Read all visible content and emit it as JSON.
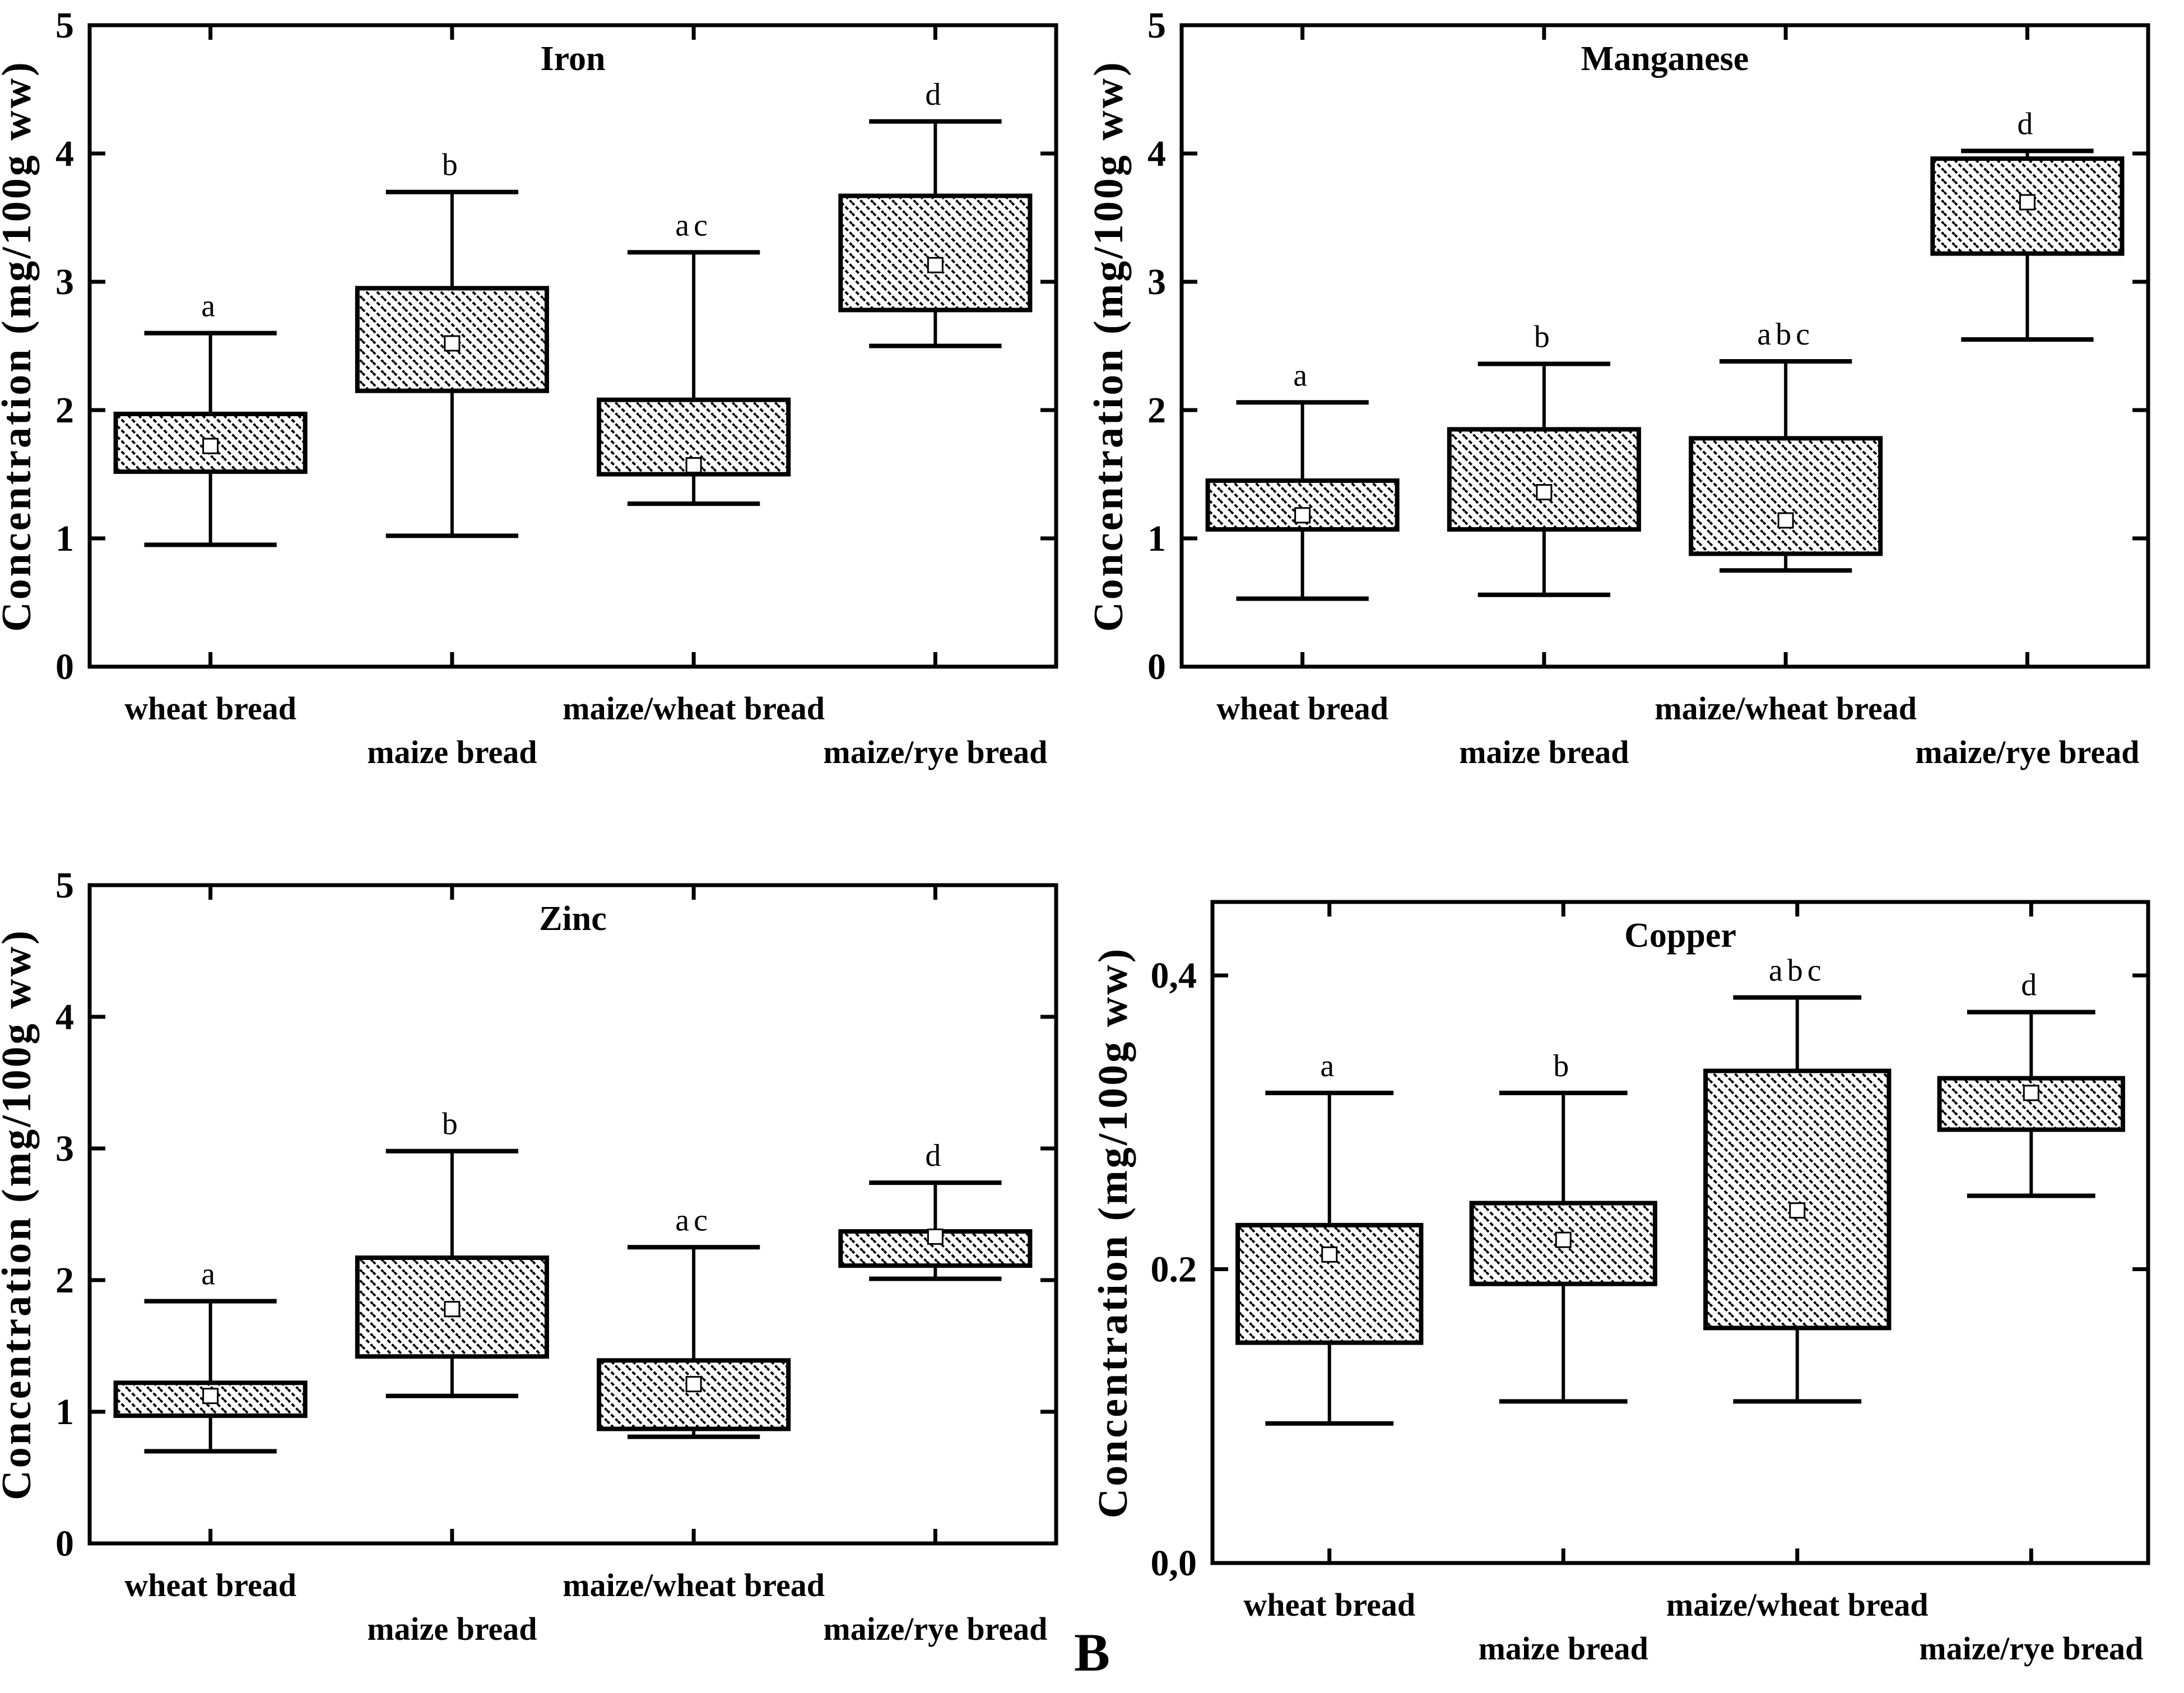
{
  "figure": {
    "caption_label": "B",
    "y_axis_label": "Concentration (mg/100g ww)",
    "categories": [
      "wheat bread",
      "maize bread",
      "maize/wheat bread",
      "maize/rye bread"
    ],
    "colors": {
      "ink": "#000000",
      "paper": "#ffffff",
      "marker_fill": "#ffffff"
    },
    "box_style": "diagonal-hatch"
  },
  "chart_data": [
    {
      "type": "box",
      "title": "Iron",
      "ylabel": "Concentration (mg/100g ww)",
      "ylim": [
        0,
        5
      ],
      "grid": false,
      "yticks": [
        {
          "v": 0,
          "label": "0"
        },
        {
          "v": 1,
          "label": "1"
        },
        {
          "v": 2,
          "label": "2"
        },
        {
          "v": 3,
          "label": "3"
        },
        {
          "v": 4,
          "label": "4"
        },
        {
          "v": 5,
          "label": "5"
        }
      ],
      "groups": [
        {
          "category": "wheat bread",
          "sig": "a",
          "whisker_low": 0.95,
          "q1": 1.52,
          "mean": 1.72,
          "q3": 1.97,
          "whisker_high": 2.6
        },
        {
          "category": "maize bread",
          "sig": "b",
          "whisker_low": 1.02,
          "q1": 2.15,
          "mean": 2.52,
          "q3": 2.95,
          "whisker_high": 3.7
        },
        {
          "category": "maize/wheat bread",
          "sig": "ac",
          "whisker_low": 1.27,
          "q1": 1.5,
          "mean": 1.57,
          "q3": 2.08,
          "whisker_high": 3.23
        },
        {
          "category": "maize/rye bread",
          "sig": "d",
          "whisker_low": 2.5,
          "q1": 2.78,
          "mean": 3.13,
          "q3": 3.67,
          "whisker_high": 4.25
        }
      ]
    },
    {
      "type": "box",
      "title": "Manganese",
      "ylabel": "Concentration (mg/100g ww)",
      "ylim": [
        0,
        5
      ],
      "grid": false,
      "yticks": [
        {
          "v": 0,
          "label": "0"
        },
        {
          "v": 1,
          "label": "1"
        },
        {
          "v": 2,
          "label": "2"
        },
        {
          "v": 3,
          "label": "3"
        },
        {
          "v": 4,
          "label": "4"
        },
        {
          "v": 5,
          "label": "5"
        }
      ],
      "groups": [
        {
          "category": "wheat bread",
          "sig": "a",
          "whisker_low": 0.53,
          "q1": 1.07,
          "mean": 1.18,
          "q3": 1.45,
          "whisker_high": 2.06
        },
        {
          "category": "maize bread",
          "sig": "b",
          "whisker_low": 0.56,
          "q1": 1.07,
          "mean": 1.36,
          "q3": 1.85,
          "whisker_high": 2.36
        },
        {
          "category": "maize/wheat bread",
          "sig": "abc",
          "whisker_low": 0.75,
          "q1": 0.88,
          "mean": 1.14,
          "q3": 1.78,
          "whisker_high": 2.38
        },
        {
          "category": "maize/rye bread",
          "sig": "d",
          "whisker_low": 2.55,
          "q1": 3.22,
          "mean": 3.62,
          "q3": 3.96,
          "whisker_high": 4.02
        }
      ]
    },
    {
      "type": "box",
      "title": "Zinc",
      "ylabel": "Concentration (mg/100g ww)",
      "ylim": [
        0,
        5
      ],
      "grid": false,
      "yticks": [
        {
          "v": 0,
          "label": "0"
        },
        {
          "v": 1,
          "label": "1"
        },
        {
          "v": 2,
          "label": "2"
        },
        {
          "v": 3,
          "label": "3"
        },
        {
          "v": 4,
          "label": "4"
        },
        {
          "v": 5,
          "label": "5"
        }
      ],
      "groups": [
        {
          "category": "wheat bread",
          "sig": "a",
          "whisker_low": 0.7,
          "q1": 0.97,
          "mean": 1.12,
          "q3": 1.22,
          "whisker_high": 1.84
        },
        {
          "category": "maize bread",
          "sig": "b",
          "whisker_low": 1.12,
          "q1": 1.42,
          "mean": 1.78,
          "q3": 2.17,
          "whisker_high": 2.98
        },
        {
          "category": "maize/wheat bread",
          "sig": "ac",
          "whisker_low": 0.81,
          "q1": 0.87,
          "mean": 1.21,
          "q3": 1.39,
          "whisker_high": 2.25
        },
        {
          "category": "maize/rye bread",
          "sig": "d",
          "whisker_low": 2.01,
          "q1": 2.11,
          "mean": 2.33,
          "q3": 2.37,
          "whisker_high": 2.74
        }
      ]
    },
    {
      "type": "box",
      "title": "Copper",
      "ylabel": "Concentration (mg/100g ww)",
      "ylim": [
        0,
        0.45
      ],
      "grid": false,
      "yticks": [
        {
          "v": 0,
          "label": "0,0"
        },
        {
          "v": 0.2,
          "label": "0.2"
        },
        {
          "v": 0.4,
          "label": "0,4"
        }
      ],
      "groups": [
        {
          "category": "wheat bread",
          "sig": "a",
          "whisker_low": 0.095,
          "q1": 0.15,
          "mean": 0.21,
          "q3": 0.23,
          "whisker_high": 0.32
        },
        {
          "category": "maize bread",
          "sig": "b",
          "whisker_low": 0.11,
          "q1": 0.19,
          "mean": 0.22,
          "q3": 0.245,
          "whisker_high": 0.32
        },
        {
          "category": "maize/wheat bread",
          "sig": "abc",
          "whisker_low": 0.11,
          "q1": 0.16,
          "mean": 0.24,
          "q3": 0.335,
          "whisker_high": 0.385
        },
        {
          "category": "maize/rye bread",
          "sig": "d",
          "whisker_low": 0.25,
          "q1": 0.295,
          "mean": 0.32,
          "q3": 0.33,
          "whisker_high": 0.375
        }
      ]
    }
  ]
}
